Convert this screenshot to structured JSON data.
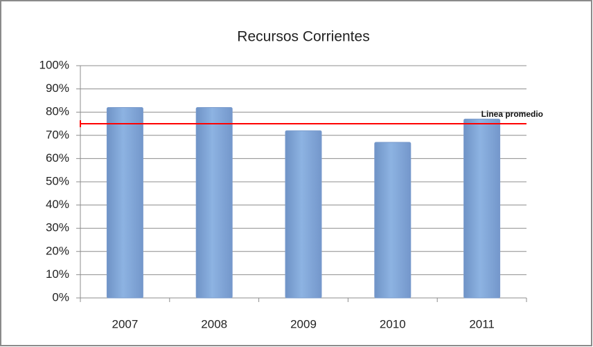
{
  "chart_data": {
    "type": "bar",
    "title": "Recursos Corrientes",
    "categories": [
      "2007",
      "2008",
      "2009",
      "2010",
      "2011"
    ],
    "values": [
      82,
      82,
      72,
      67,
      77
    ],
    "color": "#8db3e2",
    "ylim": [
      0,
      100
    ],
    "yticks": [
      {
        "value": 0,
        "label": "0%"
      },
      {
        "value": 10,
        "label": "10%"
      },
      {
        "value": 20,
        "label": "20%"
      },
      {
        "value": 30,
        "label": "30%"
      },
      {
        "value": 40,
        "label": "40%"
      },
      {
        "value": 50,
        "label": "50%"
      },
      {
        "value": 60,
        "label": "60%"
      },
      {
        "value": 70,
        "label": "70%"
      },
      {
        "value": 80,
        "label": "80%"
      },
      {
        "value": 90,
        "label": "90%"
      },
      {
        "value": 100,
        "label": "100%"
      }
    ],
    "grid": true,
    "average_line": {
      "label": "Linea promedio",
      "value": 75,
      "color": "#ff0000"
    }
  }
}
